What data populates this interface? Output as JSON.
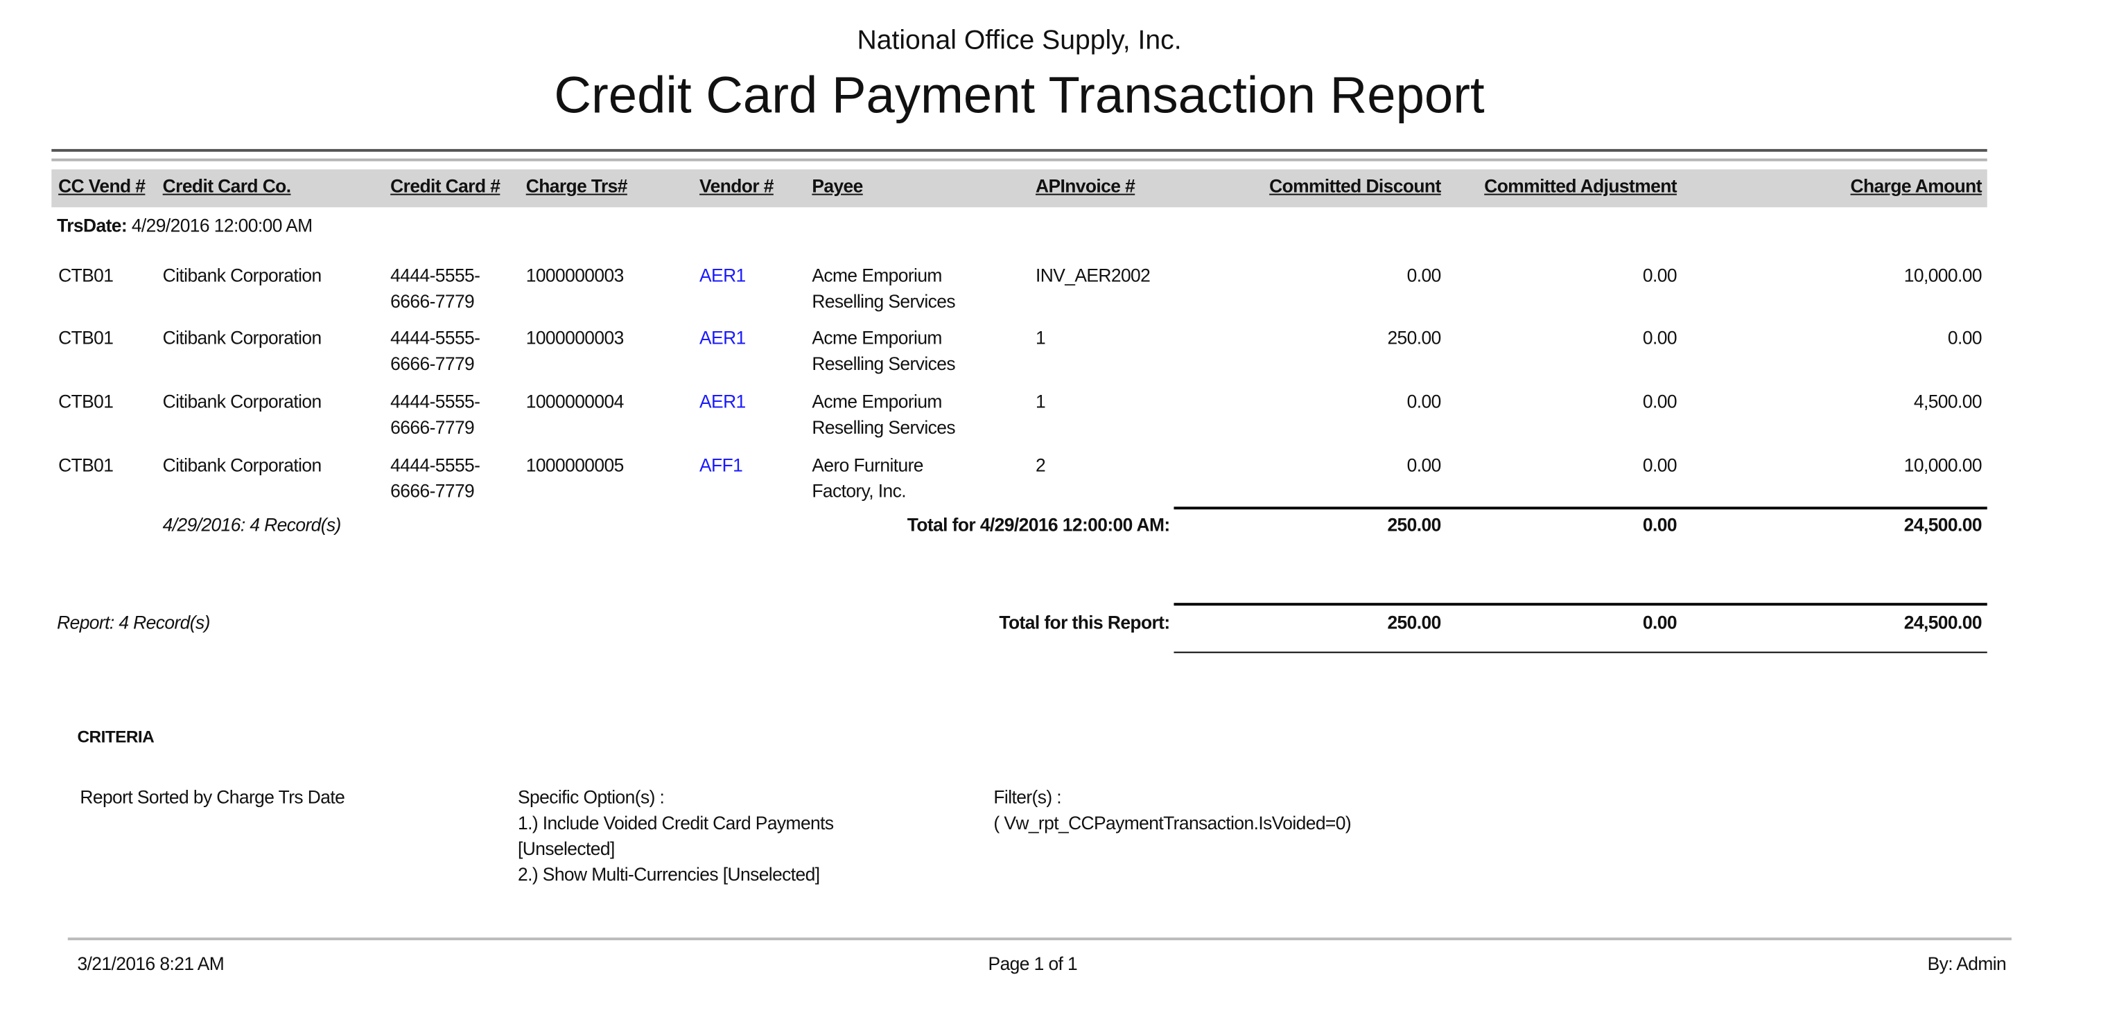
{
  "header": {
    "company": "National Office Supply, Inc.",
    "title": "Credit Card Payment Transaction Report"
  },
  "columns": [
    "CC Vend #",
    "Credit Card Co.",
    "Credit Card #",
    "Charge Trs#",
    "Vendor #",
    "Payee",
    "APInvoice #",
    "Committed Discount",
    "Committed Adjustment",
    "Charge Amount"
  ],
  "group": {
    "label": "TrsDate:",
    "value": "4/29/2016 12:00:00 AM"
  },
  "rows": [
    {
      "cc_vend": "CTB01",
      "cc_co": "Citibank Corporation",
      "card": [
        "4444-5555-",
        "6666-7779"
      ],
      "charge_trs": "1000000003",
      "vendor": "AER1",
      "payee": [
        "Acme Emporium",
        "Reselling Services"
      ],
      "invoice": "INV_AER2002",
      "discount": "0.00",
      "adjustment": "0.00",
      "amount": "10,000.00"
    },
    {
      "cc_vend": "CTB01",
      "cc_co": "Citibank Corporation",
      "card": [
        "4444-5555-",
        "6666-7779"
      ],
      "charge_trs": "1000000003",
      "vendor": "AER1",
      "payee": [
        "Acme Emporium",
        "Reselling Services"
      ],
      "invoice": "1",
      "discount": "250.00",
      "adjustment": "0.00",
      "amount": "0.00"
    },
    {
      "cc_vend": "CTB01",
      "cc_co": "Citibank Corporation",
      "card": [
        "4444-5555-",
        "6666-7779"
      ],
      "charge_trs": "1000000004",
      "vendor": "AER1",
      "payee": [
        "Acme Emporium",
        "Reselling Services"
      ],
      "invoice": "1",
      "discount": "0.00",
      "adjustment": "0.00",
      "amount": "4,500.00"
    },
    {
      "cc_vend": "CTB01",
      "cc_co": "Citibank Corporation",
      "card": [
        "4444-5555-",
        "6666-7779"
      ],
      "charge_trs": "1000000005",
      "vendor": "AFF1",
      "payee": [
        "Aero Furniture",
        "Factory, Inc."
      ],
      "invoice": "2",
      "discount": "0.00",
      "adjustment": "0.00",
      "amount": "10,000.00"
    }
  ],
  "group_total": {
    "count": "4/29/2016: 4 Record(s)",
    "label": "Total for 4/29/2016 12:00:00 AM:",
    "discount": "250.00",
    "adjustment": "0.00",
    "amount": "24,500.00"
  },
  "report_total": {
    "count": "Report: 4 Record(s)",
    "label": "Total for this Report:",
    "discount": "250.00",
    "adjustment": "0.00",
    "amount": "24,500.00"
  },
  "criteria": {
    "heading": "CRITERIA",
    "sorted": "Report Sorted by Charge Trs Date",
    "options_label": "Specific Option(s) :",
    "options": [
      "1.) Include Voided Credit Card Payments",
      "[Unselected]",
      "2.) Show Multi-Currencies [Unselected]"
    ],
    "filters_label": "Filter(s) :",
    "filters": [
      "( Vw_rpt_CCPaymentTransaction.IsVoided=0)"
    ]
  },
  "footer": {
    "printed": "3/21/2016 8:21 AM",
    "page": "Page 1 of 1",
    "by": "By: Admin"
  },
  "colors": {
    "link": "#1a1aff",
    "header_band": "#d4d4d4"
  }
}
